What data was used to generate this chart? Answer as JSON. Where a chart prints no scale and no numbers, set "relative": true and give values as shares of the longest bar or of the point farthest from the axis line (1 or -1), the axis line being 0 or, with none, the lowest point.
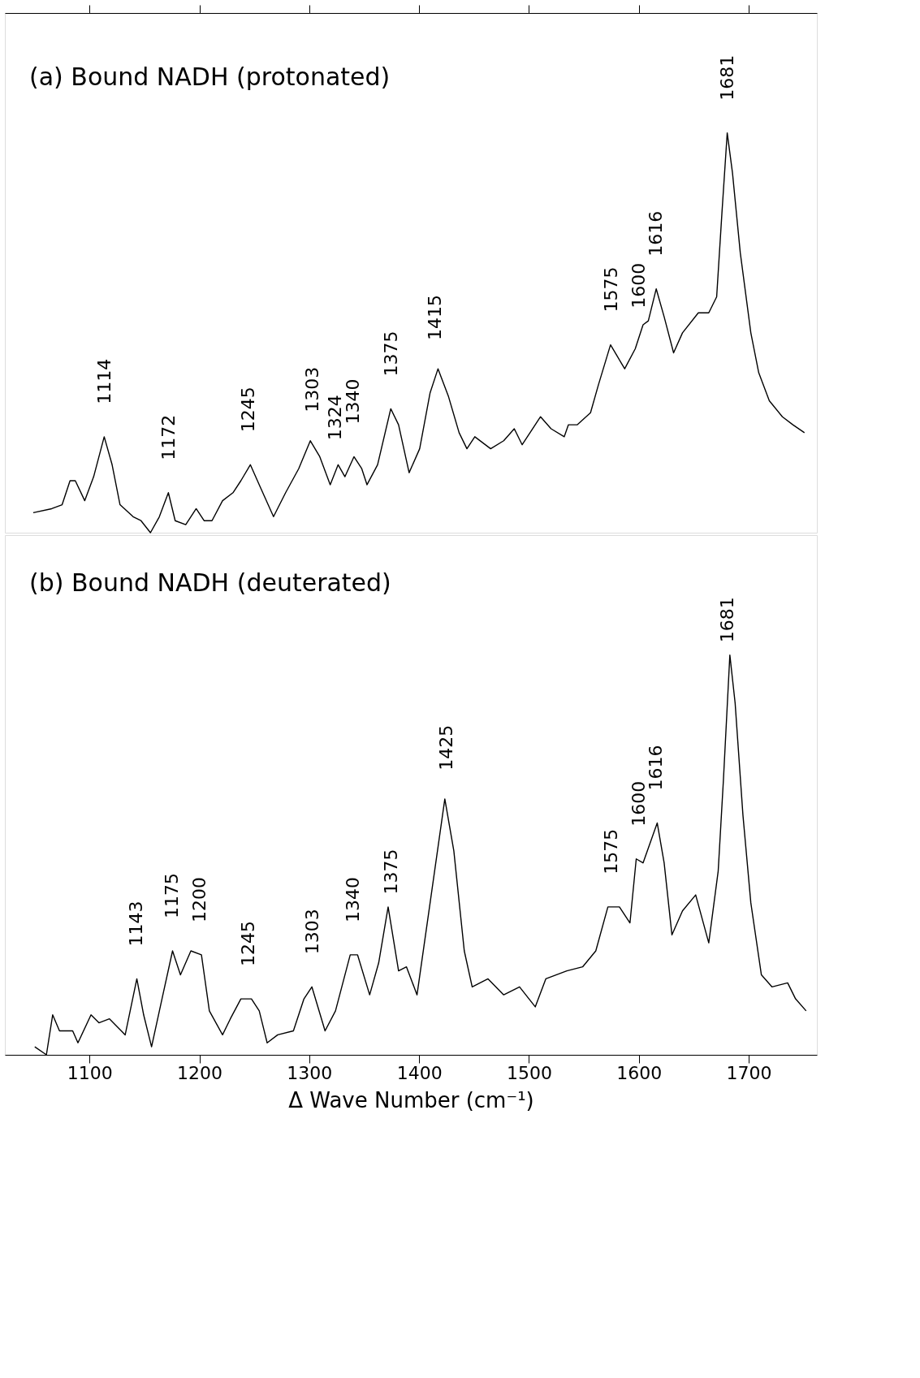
{
  "chart_data": [
    {
      "type": "line",
      "relative": true,
      "title": "(a) Bound NADH (protonated)",
      "xlim": [
        1023,
        1762
      ],
      "xticks": [
        1100,
        1200,
        1300,
        1400,
        1500,
        1600,
        1700
      ],
      "tick_labels": false,
      "grid": false,
      "marker": "none",
      "line_style": "solid",
      "series": [
        {
          "color": "#000000",
          "x": [
            1048.8,
            1065.6,
            1075.1,
            1082.3,
            1087.1,
            1095.7,
            1103.8,
            1113.4,
            1120.6,
            1127.8,
            1139.7,
            1146.9,
            1155.5,
            1163.6,
            1171.8,
            1178.0,
            1187.6,
            1197.1,
            1204.3,
            1211.5,
            1221.1,
            1230.6,
            1237.8,
            1246.4,
            1254.5,
            1267.5,
            1278.5,
            1290.4,
            1301.0,
            1309.6,
            1319.1,
            1326.3,
            1332.5,
            1340.7,
            1347.8,
            1352.6,
            1362.2,
            1374.2,
            1381.3,
            1390.9,
            1400.5,
            1410.0,
            1417.2,
            1426.8,
            1436.4,
            1443.5,
            1450.7,
            1465.1,
            1477.0,
            1486.6,
            1493.8,
            1510.5,
            1520.1,
            1532.1,
            1535.9,
            1544.0,
            1556.0,
            1563.2,
            1574.2,
            1587.1,
            1596.7,
            1603.8,
            1608.6,
            1615.8,
            1623.0,
            1631.6,
            1639.7,
            1654.1,
            1663.6,
            1670.8,
            1675.6,
            1680.4,
            1685.2,
            1692.3,
            1701.9,
            1709.1,
            1718.7,
            1730.6,
            1740.2,
            1750.7
          ],
          "values": [
            0.05,
            0.06,
            0.07,
            0.13,
            0.13,
            0.08,
            0.14,
            0.24,
            0.17,
            0.07,
            0.04,
            0.03,
            0,
            0.04,
            0.1,
            0.03,
            0.02,
            0.06,
            0.03,
            0.03,
            0.08,
            0.1,
            0.13,
            0.17,
            0.12,
            0.04,
            0.1,
            0.16,
            0.23,
            0.19,
            0.12,
            0.17,
            0.14,
            0.19,
            0.16,
            0.12,
            0.17,
            0.31,
            0.27,
            0.15,
            0.21,
            0.35,
            0.41,
            0.34,
            0.25,
            0.21,
            0.24,
            0.21,
            0.23,
            0.26,
            0.22,
            0.29,
            0.26,
            0.24,
            0.27,
            0.27,
            0.3,
            0.37,
            0.47,
            0.41,
            0.46,
            0.52,
            0.53,
            0.61,
            0.54,
            0.45,
            0.5,
            0.55,
            0.55,
            0.59,
            0.8,
            1,
            0.9,
            0.7,
            0.5,
            0.4,
            0.33,
            0.29,
            0.27,
            0.25
          ]
        }
      ],
      "annotations": [
        {
          "text": "1114",
          "x": 1114,
          "y": 0.24
        },
        {
          "text": "1172",
          "x": 1172,
          "y": 0.1
        },
        {
          "text": "1245",
          "x": 1245,
          "y": 0.17
        },
        {
          "text": "1303",
          "x": 1303,
          "y": 0.22
        },
        {
          "text": "1324",
          "x": 1324,
          "y": 0.15
        },
        {
          "text": "1340",
          "x": 1340,
          "y": 0.19
        },
        {
          "text": "1375",
          "x": 1375,
          "y": 0.31
        },
        {
          "text": "1415",
          "x": 1415,
          "y": 0.4
        },
        {
          "text": "1575",
          "x": 1575,
          "y": 0.47
        },
        {
          "text": "1600",
          "x": 1600,
          "y": 0.48
        },
        {
          "text": "1616",
          "x": 1616,
          "y": 0.61
        },
        {
          "text": "1681",
          "x": 1681,
          "y": 1
        }
      ]
    },
    {
      "type": "line",
      "relative": true,
      "title": "(b) Bound NADH (deuterated)",
      "xlabel": "Δ Wave Number (cm⁻¹)",
      "xlim": [
        1023,
        1762
      ],
      "xticks": [
        1100,
        1200,
        1300,
        1400,
        1500,
        1600,
        1700
      ],
      "tick_labels": "x",
      "grid": false,
      "marker": "none",
      "line_style": "solid",
      "series": [
        {
          "color": "#000000",
          "x": [
            1050.2,
            1060.8,
            1066.5,
            1072.7,
            1084.7,
            1089.5,
            1101.4,
            1108.6,
            1118.2,
            1132.5,
            1143.1,
            1149.3,
            1156.5,
            1166.0,
            1175.6,
            1182.8,
            1192.3,
            1201.9,
            1209.1,
            1221.1,
            1228.2,
            1237.8,
            1247.4,
            1254.5,
            1261.7,
            1271.3,
            1285.6,
            1295.2,
            1302.4,
            1314.4,
            1323.9,
            1337.3,
            1344.0,
            1355.0,
            1363.2,
            1371.8,
            1381.3,
            1388.5,
            1398.1,
            1410.0,
            1423.4,
            1431.6,
            1441.1,
            1448.3,
            1462.7,
            1477.0,
            1491.4,
            1505.7,
            1515.3,
            1534.4,
            1548.8,
            1560.8,
            1571.8,
            1582.3,
            1591.9,
            1597.6,
            1603.8,
            1616.7,
            1623.0,
            1630.1,
            1639.7,
            1651.7,
            1663.6,
            1672.2,
            1677.0,
            1682.8,
            1687.6,
            1694.7,
            1701.9,
            1711.5,
            1721.1,
            1735.4,
            1742.6,
            1752.2
          ],
          "values": [
            0.02,
            0,
            0.1,
            0.06,
            0.06,
            0.03,
            0.1,
            0.08,
            0.09,
            0.05,
            0.19,
            0.1,
            0.02,
            0.14,
            0.26,
            0.2,
            0.26,
            0.25,
            0.11,
            0.05,
            0.09,
            0.14,
            0.14,
            0.11,
            0.03,
            0.05,
            0.06,
            0.14,
            0.17,
            0.06,
            0.11,
            0.25,
            0.25,
            0.15,
            0.23,
            0.37,
            0.21,
            0.22,
            0.15,
            0.38,
            0.64,
            0.51,
            0.26,
            0.17,
            0.19,
            0.15,
            0.17,
            0.12,
            0.19,
            0.21,
            0.22,
            0.26,
            0.37,
            0.37,
            0.33,
            0.49,
            0.48,
            0.58,
            0.48,
            0.3,
            0.36,
            0.4,
            0.28,
            0.46,
            0.69,
            1,
            0.88,
            0.6,
            0.38,
            0.2,
            0.17,
            0.18,
            0.14,
            0.11
          ]
        }
      ],
      "annotations": [
        {
          "text": "1143",
          "x": 1143,
          "y": 0.19
        },
        {
          "text": "1175",
          "x": 1175,
          "y": 0.26
        },
        {
          "text": "1200",
          "x": 1200,
          "y": 0.25
        },
        {
          "text": "1245",
          "x": 1245,
          "y": 0.14
        },
        {
          "text": "1303",
          "x": 1303,
          "y": 0.17
        },
        {
          "text": "1340",
          "x": 1340,
          "y": 0.25
        },
        {
          "text": "1375",
          "x": 1375,
          "y": 0.32
        },
        {
          "text": "1425",
          "x": 1425,
          "y": 0.63
        },
        {
          "text": "1575",
          "x": 1575,
          "y": 0.37
        },
        {
          "text": "1600",
          "x": 1600,
          "y": 0.49
        },
        {
          "text": "1616",
          "x": 1616,
          "y": 0.58
        },
        {
          "text": "1681",
          "x": 1681,
          "y": 0.95
        }
      ]
    }
  ]
}
